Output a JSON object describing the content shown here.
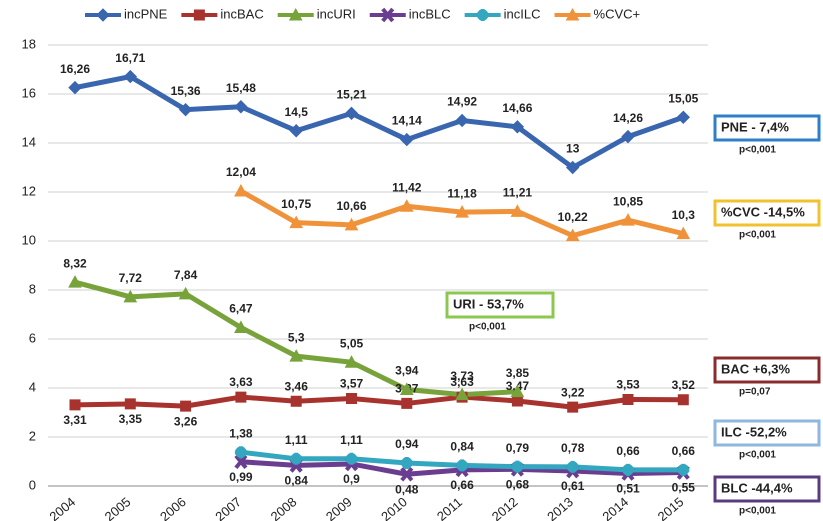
{
  "chart_data": {
    "type": "line",
    "categories": [
      "2004",
      "2005",
      "2006",
      "2007",
      "2008",
      "2009",
      "2010",
      "2011",
      "2012",
      "2013",
      "2014",
      "2015"
    ],
    "ylim": [
      0,
      18
    ],
    "yticks": [
      0,
      2,
      4,
      6,
      8,
      10,
      12,
      14,
      16,
      18
    ],
    "grid": true,
    "series": [
      {
        "name": "incPNE",
        "color": "#3a66b0",
        "marker": "diamond",
        "values": [
          16.26,
          16.71,
          15.36,
          15.48,
          14.5,
          15.21,
          14.14,
          14.92,
          14.66,
          13,
          14.26,
          15.05
        ],
        "value_labels": [
          "16,26",
          "16,71",
          "15,36",
          "15,48",
          "14,5",
          "15,21",
          "14,14",
          "14,92",
          "14,66",
          "13",
          "14,26",
          "15,05"
        ]
      },
      {
        "name": "incBAC",
        "color": "#a8322d",
        "marker": "square",
        "values": [
          3.31,
          3.35,
          3.26,
          3.63,
          3.46,
          3.57,
          3.37,
          3.63,
          3.47,
          3.22,
          3.53,
          3.52
        ],
        "value_labels": [
          "3,31",
          "3,35",
          "3,26",
          "3,63",
          "3,46",
          "3,57",
          "3,37",
          "3,63",
          "3,47",
          "3,22",
          "3,53",
          "3,52"
        ]
      },
      {
        "name": "incURI",
        "color": "#77a33a",
        "marker": "triangle",
        "values": [
          8.32,
          7.72,
          7.84,
          6.47,
          5.3,
          5.05,
          3.94,
          3.73,
          3.85,
          null,
          null,
          null
        ],
        "value_labels": [
          "8,32",
          "7,72",
          "7,84",
          "6,47",
          "5,3",
          "5,05",
          "3,94",
          "3,73",
          "3,85",
          null,
          null,
          null
        ]
      },
      {
        "name": "incBLC",
        "color": "#6a3d91",
        "marker": "cross",
        "values": [
          null,
          null,
          null,
          0.99,
          0.84,
          0.9,
          0.48,
          0.66,
          0.68,
          0.61,
          0.51,
          0.55
        ],
        "value_labels": [
          null,
          null,
          null,
          "0,99",
          "0,84",
          "0,9",
          "0,48",
          "0,66",
          "0,68",
          "0,61",
          "0,51",
          "0,55"
        ]
      },
      {
        "name": "incILC",
        "color": "#33a6c0",
        "marker": "star",
        "values": [
          null,
          null,
          null,
          1.38,
          1.11,
          1.11,
          0.94,
          0.84,
          0.79,
          0.78,
          0.66,
          0.66
        ],
        "value_labels": [
          null,
          null,
          null,
          "1,38",
          "1,11",
          "1,11",
          "0,94",
          "0,84",
          "0,79",
          "0,78",
          "0,66",
          "0,66"
        ]
      },
      {
        "name": "%CVC+",
        "color": "#f0923a",
        "marker": "triangle",
        "values": [
          null,
          null,
          null,
          12.04,
          10.75,
          10.66,
          11.42,
          11.18,
          11.21,
          10.22,
          10.85,
          10.3
        ],
        "value_labels": [
          null,
          null,
          null,
          "12,04",
          "10,75",
          "10,66",
          "11,42",
          "11,18",
          "11,21",
          "10,22",
          "10,85",
          "10,3"
        ]
      }
    ],
    "annotations": [
      {
        "text": "PNE - 7,4%",
        "p": "p<0,001",
        "color": "#2f7fc8"
      },
      {
        "text": "%CVC -14,5%",
        "p": "p<0,001",
        "color": "#f2c12e"
      },
      {
        "text": "URI - 53,7%",
        "p": "p<0,001",
        "color": "#8cc850"
      },
      {
        "text": "BAC +6,3%",
        "p": "p=0,07",
        "color": "#8a2c2c"
      },
      {
        "text": "ILC -52,2%",
        "p": "p<0,001",
        "color": "#8fb7e0"
      },
      {
        "text": "BLC -44,4%",
        "p": "p<0,001",
        "color": "#5b3b80"
      }
    ]
  }
}
